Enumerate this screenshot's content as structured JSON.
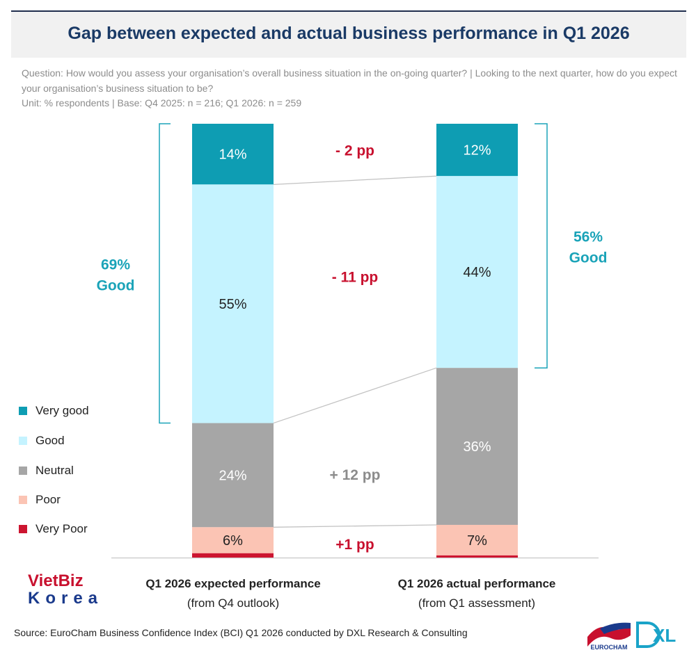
{
  "title": "Gap between expected and actual business performance in Q1 2026",
  "question": "Question: How would you assess your organisation’s overall business situation in the on-going quarter? | Looking to the next quarter, how do you expect your organisation’s business situation to be?",
  "unit": "Unit: % respondents | Base: Q4 2025: n = 216; Q1 2026: n = 259",
  "chart_data": {
    "type": "bar",
    "stacked": true,
    "categories": [
      "Q1 2026 expected performance",
      "Q1 2026 actual performance"
    ],
    "category_subtitles": [
      "(from Q4 outlook)",
      "(from Q1 assessment)"
    ],
    "series": [
      {
        "name": "Very good",
        "values": [
          14,
          12
        ],
        "labels": [
          "14%",
          "12%"
        ],
        "color": "#0e9db3",
        "text_color": "#ffffff"
      },
      {
        "name": "Good",
        "values": [
          55,
          44
        ],
        "labels": [
          "55%",
          "44%"
        ],
        "color": "#c5f3ff",
        "text_color": "#222222"
      },
      {
        "name": "Neutral",
        "values": [
          24,
          36
        ],
        "labels": [
          "24%",
          "36%"
        ],
        "color": "#a6a6a6",
        "text_color": "#ffffff"
      },
      {
        "name": "Poor",
        "values": [
          6,
          7
        ],
        "labels": [
          "6%",
          "7%"
        ],
        "color": "#fbc4b4",
        "text_color": "#222222"
      },
      {
        "name": "Very Poor",
        "values": [
          1,
          0.5
        ],
        "labels": [
          "",
          ""
        ],
        "color": "#cc1530",
        "text_color": "#ffffff"
      }
    ],
    "differences": [
      {
        "series": "Very good",
        "label": "- 2 pp",
        "color": "#c8102e"
      },
      {
        "series": "Good",
        "label": "- 11 pp",
        "color": "#c8102e"
      },
      {
        "series": "Neutral",
        "label": "+ 12 pp",
        "color": "#8c8c8c"
      },
      {
        "series": "Poor",
        "label": "+1 pp",
        "color": "#c8102e"
      }
    ],
    "brackets": [
      {
        "category": "Q1 2026 expected performance",
        "line1": "69%",
        "line2": "Good",
        "side": "left"
      },
      {
        "category": "Q1 2026 actual performance",
        "line1": "56%",
        "line2": "Good",
        "side": "right"
      }
    ],
    "bracket_color": "#1aa3b8",
    "legend_position": "left"
  },
  "source": "Source: EuroCham Business Confidence Index (BCI) Q1 2026 conducted by DXL Research & Consulting",
  "logos": {
    "vietbiz_top": "VietBiz",
    "vietbiz_bottom": "Korea",
    "eurocham": "EUROCHAM",
    "dxl": "XL"
  }
}
